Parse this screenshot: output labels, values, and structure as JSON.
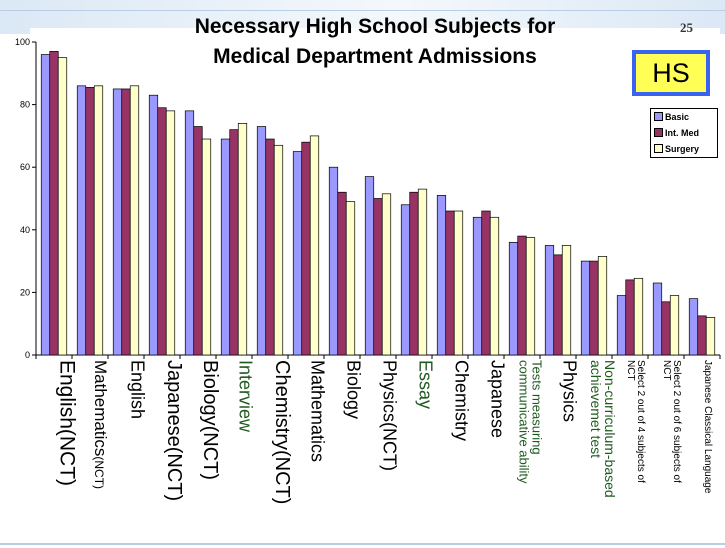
{
  "page": {
    "number": "25",
    "badge": "HS"
  },
  "colors": {
    "basic": "#9999ff",
    "int_med": "#993366",
    "surgery": "#ffffcc",
    "green_label": "#1f5a1f"
  },
  "chart_data": {
    "type": "bar",
    "title_lines": [
      "Necessary High School Subjects for",
      "Medical Department Admissions"
    ],
    "ylim": [
      0,
      100
    ],
    "yticks": [
      0,
      20,
      40,
      60,
      80,
      100
    ],
    "grid": false,
    "legend_position": "top-right",
    "categories": [
      {
        "label": "English(NCT)",
        "size": 21,
        "green": false
      },
      {
        "label": "Mathematics(NCT)",
        "size": 17,
        "green": false,
        "parts": [
          "Mathematics",
          "(NCT)"
        ]
      },
      {
        "label": "English",
        "size": 18,
        "green": false
      },
      {
        "label": "Japanese(NCT)",
        "size": 20,
        "green": false
      },
      {
        "label": "Biology(NCT)",
        "size": 20,
        "green": false
      },
      {
        "label": "Interview",
        "size": 18,
        "green": true
      },
      {
        "label": "Chemistry(NCT)",
        "size": 20,
        "green": false
      },
      {
        "label": "Mathematics",
        "size": 18,
        "green": false
      },
      {
        "label": "Biology",
        "size": 18,
        "green": false
      },
      {
        "label": "Physics(NCT)",
        "size": 18,
        "green": false
      },
      {
        "label": "Essay",
        "size": 18,
        "green": true
      },
      {
        "label": "Chemistry",
        "size": 18,
        "green": false
      },
      {
        "label": "Japanese",
        "size": 18,
        "green": false
      },
      {
        "label": "Tests measuring communicative ability",
        "size": 13,
        "green": true,
        "lines": [
          "Tests measuring",
          "communicative ability"
        ]
      },
      {
        "label": "Physics",
        "size": 18,
        "green": false
      },
      {
        "label": "Non-curriculum-based achievemet test",
        "size": 14,
        "green": true,
        "lines": [
          "Non-curriculum-based",
          "achievemet test"
        ]
      },
      {
        "label": "Select 2 out of 4 subjects of NCT",
        "size": 10,
        "green": false,
        "lines": [
          "Select 2 out of 4 subjects of",
          "NCT"
        ]
      },
      {
        "label": "Select 2 out of  6 subjects of NCT",
        "size": 10,
        "green": false,
        "lines": [
          "Select 2 out of  6 subjects of",
          "NCT"
        ]
      },
      {
        "label": "Japanese Classical Language",
        "size": 10,
        "green": false
      }
    ],
    "series": [
      {
        "name": "Basic",
        "color": "#9999ff",
        "values": [
          96,
          86,
          85,
          83,
          78,
          69,
          73,
          65,
          60,
          57,
          48,
          51,
          44,
          36,
          35,
          30,
          19,
          23,
          18
        ]
      },
      {
        "name": "Int. Med",
        "color": "#993366",
        "values": [
          97,
          85.5,
          85,
          79,
          73,
          72,
          69,
          68,
          52,
          50,
          52,
          46,
          46,
          38,
          32,
          30,
          24,
          17,
          12.5
        ]
      },
      {
        "name": "Surgery",
        "color": "#ffffcc",
        "values": [
          95,
          86,
          86,
          78,
          69,
          74,
          67,
          70,
          49,
          51.5,
          53,
          46,
          44,
          37.5,
          35,
          31.5,
          24.5,
          19,
          12
        ]
      }
    ]
  }
}
